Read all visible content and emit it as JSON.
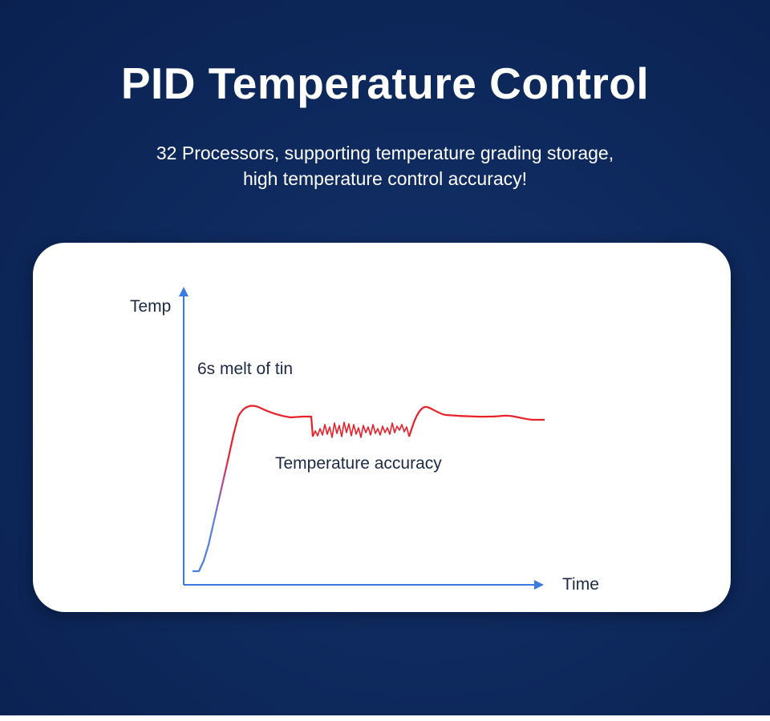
{
  "header": {
    "title": "PID Temperature Control",
    "subtitle_line1": "32 Processors, supporting temperature grading storage,",
    "subtitle_line2": "high temperature control accuracy!"
  },
  "diagram": {
    "y_axis_label": "Temp",
    "x_axis_label": "Time",
    "annotation_melt": "6s melt of tin",
    "annotation_accuracy": "Temperature accuracy",
    "colors": {
      "axis": "#3b7be0",
      "curve_hot": "#e8202a",
      "curve_cool": "#4a7fe0"
    }
  }
}
